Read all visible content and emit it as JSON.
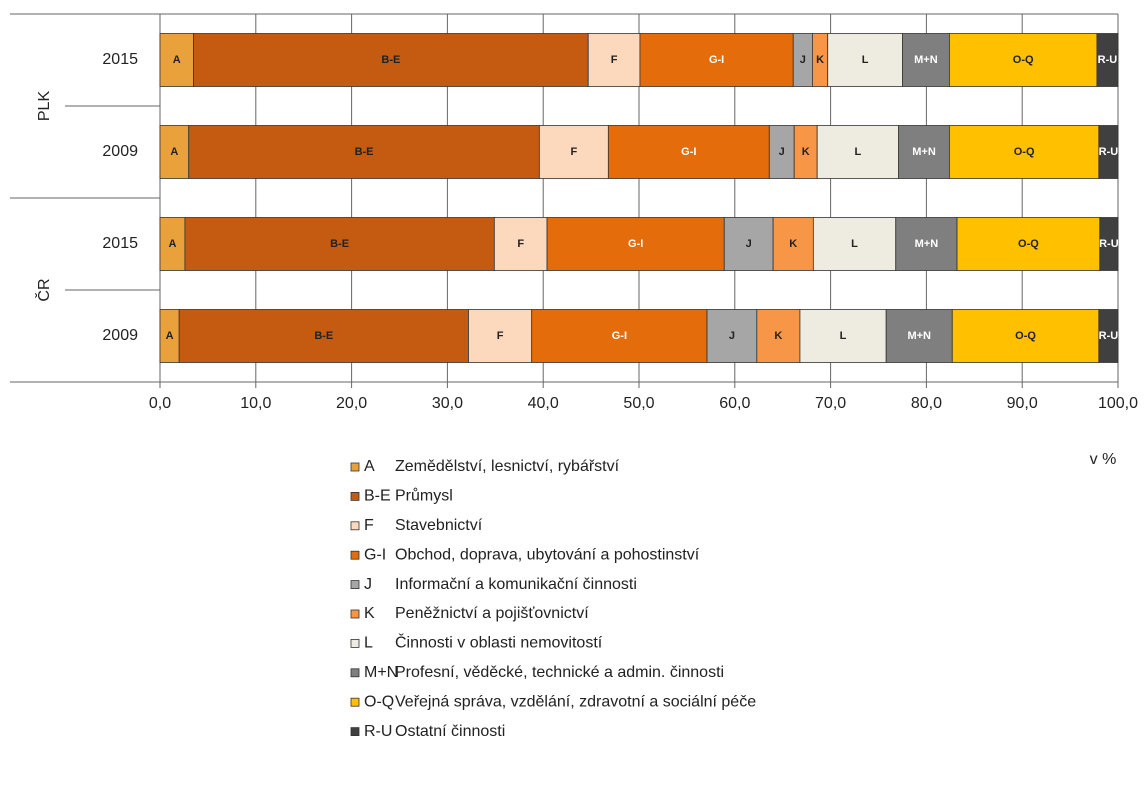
{
  "chart_data": {
    "type": "stacked_bar_horizontal",
    "categories": [
      "2015",
      "2009",
      "2015",
      "2009"
    ],
    "groups": [
      {
        "name": "PLK",
        "rows": [
          0,
          1
        ]
      },
      {
        "name": "ČR",
        "rows": [
          2,
          3
        ]
      }
    ],
    "series": [
      {
        "name": "A",
        "description": "Zemědělství, lesnictví, rybářství",
        "color": "#e9a23b",
        "values": [
          3.5,
          3.0,
          2.6,
          2.0
        ]
      },
      {
        "name": "B-E",
        "description": "Průmysl",
        "color": "#c55a11",
        "values": [
          41.2,
          36.6,
          32.3,
          30.2
        ]
      },
      {
        "name": "F",
        "description": "Stavebnictví",
        "color": "#fcd9bc",
        "values": [
          5.4,
          7.2,
          5.5,
          6.6
        ]
      },
      {
        "name": "G-I",
        "description": "Obchod, doprava, ubytování a pohostinství",
        "color": "#e46c0a",
        "values": [
          16.0,
          16.8,
          18.5,
          18.3
        ]
      },
      {
        "name": "J",
        "description": "Informační a komunikační činnosti",
        "color": "#a6a6a6",
        "values": [
          2.0,
          2.6,
          5.1,
          5.2
        ]
      },
      {
        "name": "K",
        "description": "Peněžnictví a pojišťovnictví",
        "color": "#f79646",
        "values": [
          1.6,
          2.4,
          4.2,
          4.5
        ]
      },
      {
        "name": "L",
        "description": "Činnosti v oblasti nemovitostí",
        "color": "#eeece1",
        "values": [
          7.8,
          8.5,
          8.6,
          9.0
        ]
      },
      {
        "name": "M+N",
        "description": "Profesní, věděcké, technické a admin. činnosti",
        "color": "#7f7f7f",
        "values": [
          4.9,
          5.3,
          6.4,
          6.9
        ]
      },
      {
        "name": "O-Q",
        "description": "Veřejná správa, vzdělání, zdravotní a sociální péče",
        "color": "#ffc000",
        "values": [
          15.4,
          15.6,
          14.9,
          15.3
        ]
      },
      {
        "name": "R-U",
        "description": "Ostatní činnosti",
        "color": "#404040",
        "values": [
          2.2,
          2.0,
          1.9,
          2.0
        ]
      }
    ],
    "xlim": [
      0,
      100
    ],
    "xticks": [
      {
        "value": 0,
        "label": "0,0"
      },
      {
        "value": 10,
        "label": "10,0"
      },
      {
        "value": 20,
        "label": "20,0"
      },
      {
        "value": 30,
        "label": "30,0"
      },
      {
        "value": 40,
        "label": "40,0"
      },
      {
        "value": 50,
        "label": "50,0"
      },
      {
        "value": 60,
        "label": "60,0"
      },
      {
        "value": 70,
        "label": "70,0"
      },
      {
        "value": 80,
        "label": "80,0"
      },
      {
        "value": 90,
        "label": "90,0"
      },
      {
        "value": 100,
        "label": "100,0"
      }
    ],
    "xlabel": "v %",
    "grid": true
  }
}
